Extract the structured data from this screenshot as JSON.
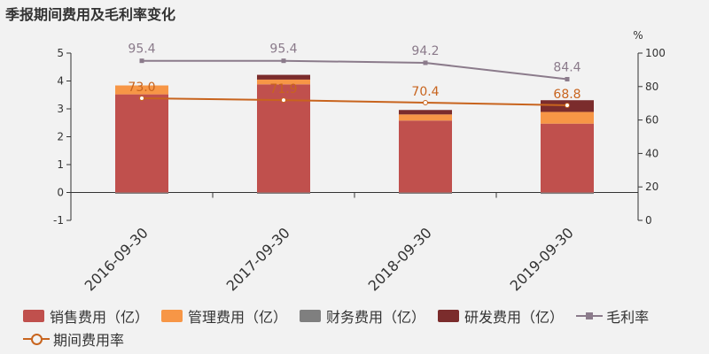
{
  "title": "季报期间费用及毛利率变化",
  "chart_data": {
    "type": "bar",
    "categories": [
      "2016-09-30",
      "2017-09-30",
      "2018-09-30",
      "2019-09-30"
    ],
    "stacked": true,
    "series": [
      {
        "name": "销售费用（亿）",
        "values": [
          3.52,
          3.88,
          2.58,
          2.47
        ],
        "color": "#c0504d"
      },
      {
        "name": "管理费用（亿）",
        "values": [
          0.32,
          0.17,
          0.22,
          0.42
        ],
        "color": "#f79646"
      },
      {
        "name": "财务费用（亿）",
        "values": [
          -0.03,
          -0.04,
          -0.04,
          -0.05
        ],
        "color": "#7f7f7f"
      },
      {
        "name": "研发费用（亿）",
        "values": [
          0.0,
          0.17,
          0.16,
          0.42
        ],
        "color": "#7b2c2c"
      }
    ],
    "lines": [
      {
        "name": "毛利率",
        "values": [
          95.4,
          95.4,
          94.2,
          84.4
        ],
        "labels": [
          "95.4",
          "95.4",
          "94.2",
          "84.4"
        ],
        "color": "#8b7b8b",
        "marker": "square",
        "axis": "right"
      },
      {
        "name": "期间费用率",
        "values": [
          73.0,
          71.9,
          70.4,
          68.8
        ],
        "labels": [
          "73.0",
          "71.9",
          "70.4",
          "68.8"
        ],
        "color": "#c8641e",
        "marker": "circle",
        "axis": "right"
      }
    ],
    "y_left": {
      "min": -1,
      "max": 5,
      "ticks": [
        "-1",
        "0",
        "1",
        "2",
        "3",
        "4",
        "5"
      ]
    },
    "y_right": {
      "min": 0,
      "max": 100,
      "ticks": [
        "0",
        "20",
        "40",
        "60",
        "80",
        "100"
      ],
      "unit": "%"
    },
    "legend_position": "bottom",
    "grid": false
  },
  "legend": {
    "items": [
      {
        "label": "销售费用（亿）",
        "kind": "bar",
        "color": "#c0504d"
      },
      {
        "label": "管理费用（亿）",
        "kind": "bar",
        "color": "#f79646"
      },
      {
        "label": "财务费用（亿）",
        "kind": "bar",
        "color": "#7f7f7f"
      },
      {
        "label": "研发费用（亿）",
        "kind": "bar",
        "color": "#7b2c2c"
      },
      {
        "label": "毛利率",
        "kind": "line-square",
        "color": "#8b7b8b"
      },
      {
        "label": "期间费用率",
        "kind": "line-circle",
        "color": "#c8641e"
      }
    ]
  }
}
